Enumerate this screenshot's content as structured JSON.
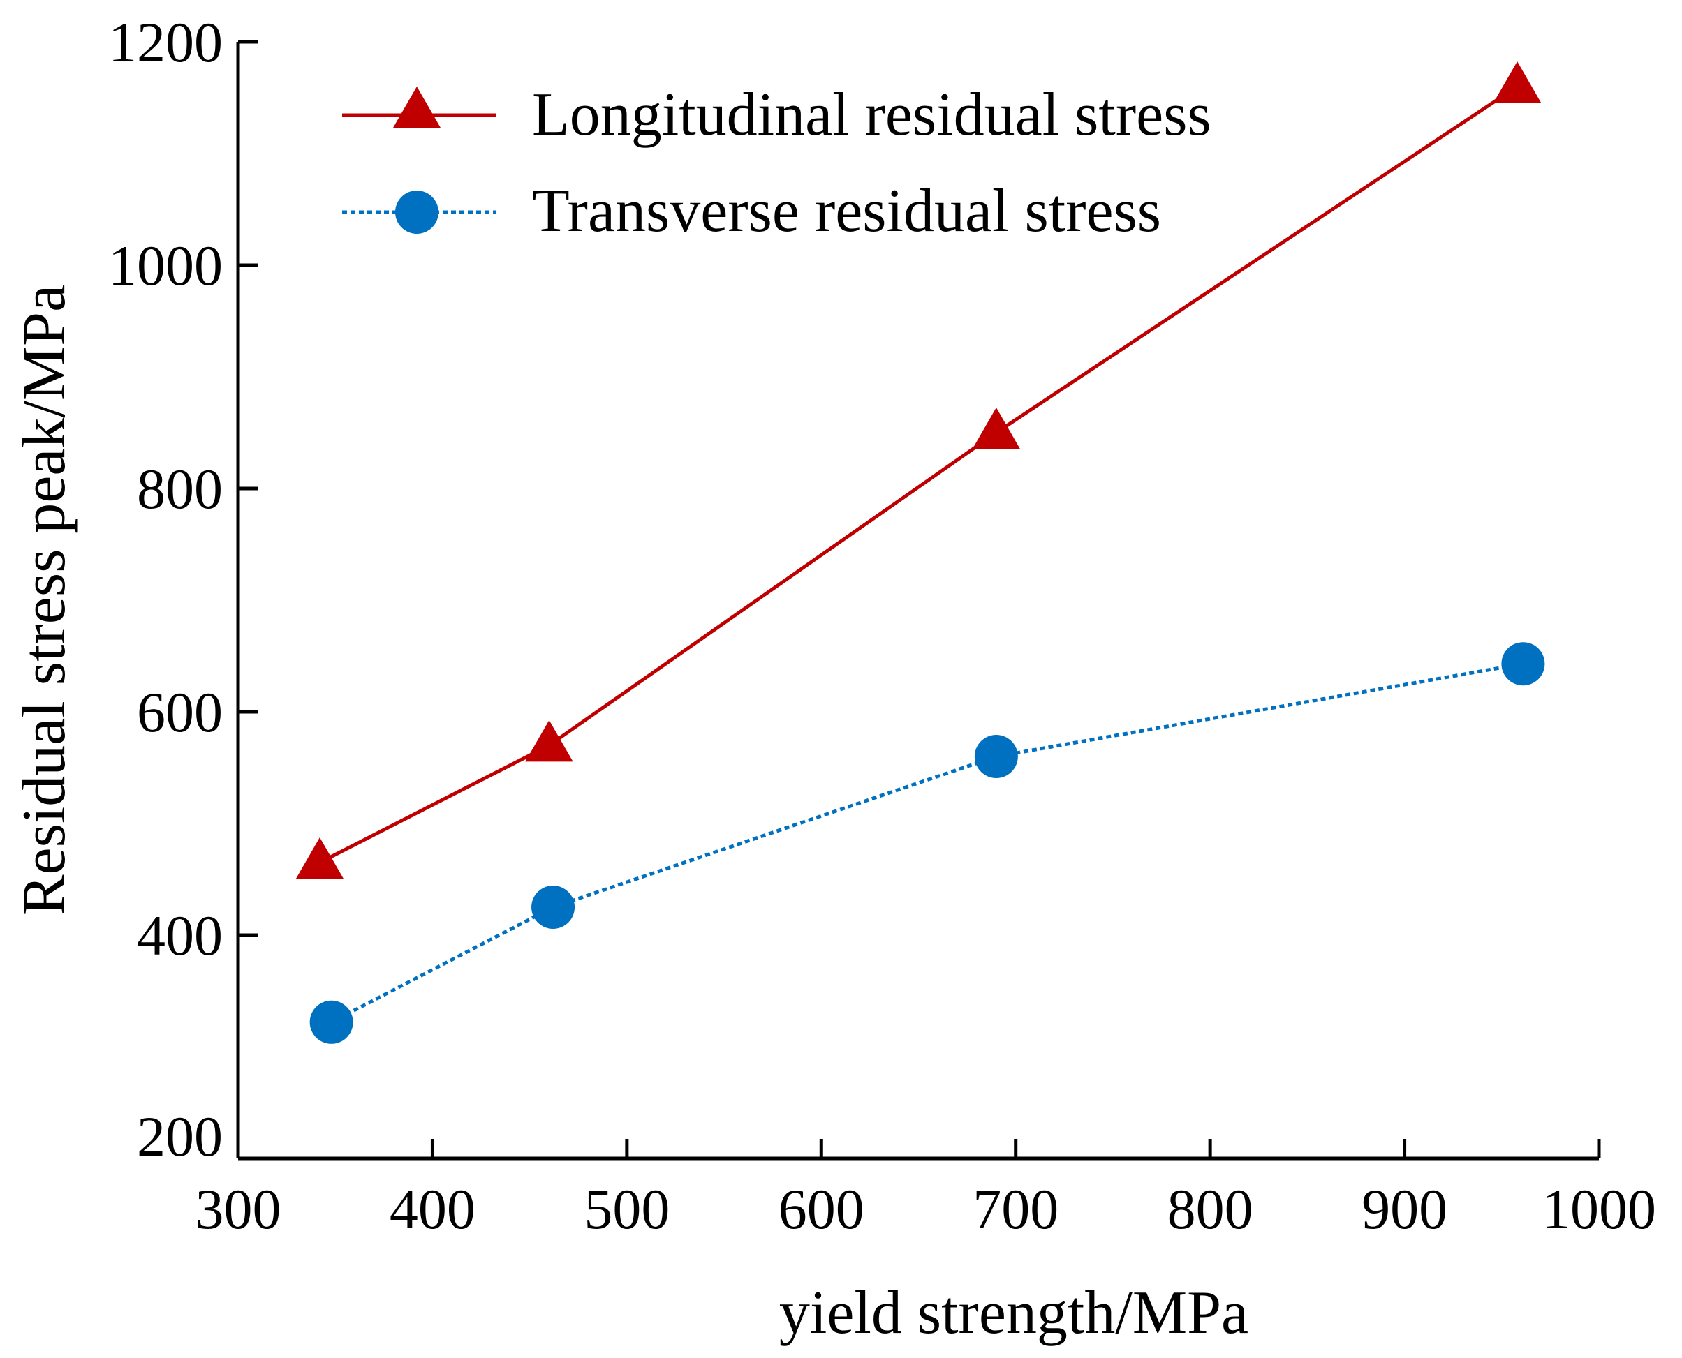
{
  "chart_data": {
    "type": "line",
    "title": "",
    "xlabel": "yield strength/MPa",
    "ylabel": "Residual stress peak/MPa",
    "xlim": [
      300,
      1000
    ],
    "ylim": [
      200,
      1200
    ],
    "xticks": [
      300,
      400,
      500,
      600,
      700,
      800,
      900,
      1000
    ],
    "yticks": [
      200,
      400,
      600,
      800,
      1000,
      1200
    ],
    "grid": false,
    "legend_position": "top-left",
    "series": [
      {
        "name": "Longitudinal residual stress",
        "marker": "triangle",
        "line_style": "solid",
        "color": "#c00000",
        "x": [
          342,
          460,
          690,
          958
        ],
        "y": [
          465,
          570,
          850,
          1160
        ]
      },
      {
        "name": "Transverse residual stress",
        "marker": "circle",
        "line_style": "dotted",
        "color": "#0070c0",
        "x": [
          348,
          462,
          690,
          961
        ],
        "y": [
          322,
          425,
          560,
          643
        ]
      }
    ]
  }
}
